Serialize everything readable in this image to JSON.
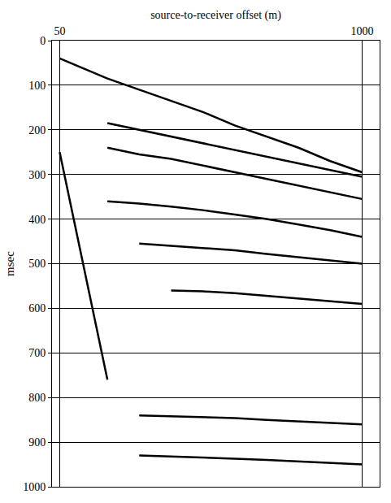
{
  "chart_data": {
    "type": "line",
    "xlabel": "source-to-receiver offset (m)",
    "ylabel": "msec",
    "x": [
      50,
      100,
      200,
      300,
      400,
      500,
      600,
      700,
      800,
      900,
      1000
    ],
    "series": [
      {
        "color": "#000000",
        "values": [
          40,
          55,
          85,
          110,
          135,
          160,
          190,
          215,
          240,
          270,
          295
        ]
      },
      {
        "color": "#000000",
        "values": [
          null,
          null,
          185,
          200,
          215,
          230,
          245,
          260,
          275,
          290,
          305
        ]
      },
      {
        "color": "#000000",
        "values": [
          null,
          null,
          240,
          255,
          265,
          280,
          295,
          310,
          325,
          340,
          355
        ]
      },
      {
        "color": "#000000",
        "values": [
          null,
          null,
          360,
          365,
          372,
          380,
          390,
          400,
          412,
          425,
          440
        ]
      },
      {
        "color": "#000000",
        "values": [
          null,
          null,
          null,
          455,
          460,
          465,
          470,
          478,
          485,
          492,
          500
        ]
      },
      {
        "color": "#000000",
        "values": [
          null,
          null,
          null,
          null,
          560,
          562,
          566,
          572,
          578,
          584,
          590
        ]
      },
      {
        "color": "#000000",
        "values": [
          null,
          null,
          null,
          840,
          842,
          844,
          846,
          850,
          853,
          856,
          860
        ]
      },
      {
        "color": "#000000",
        "values": [
          null,
          null,
          null,
          930,
          932,
          934,
          937,
          940,
          943,
          946,
          950
        ]
      },
      {
        "color": "#000000",
        "values": [
          250,
          420,
          760,
          null,
          null,
          null,
          null,
          null,
          null,
          null,
          null
        ]
      }
    ],
    "xlim": [
      26,
      1055
    ],
    "xticks": [
      50,
      1000
    ],
    "ylim": [
      1000,
      0
    ],
    "yticks": [
      0,
      100,
      200,
      300,
      400,
      500,
      600,
      700,
      800,
      900,
      1000
    ],
    "grid": true
  }
}
